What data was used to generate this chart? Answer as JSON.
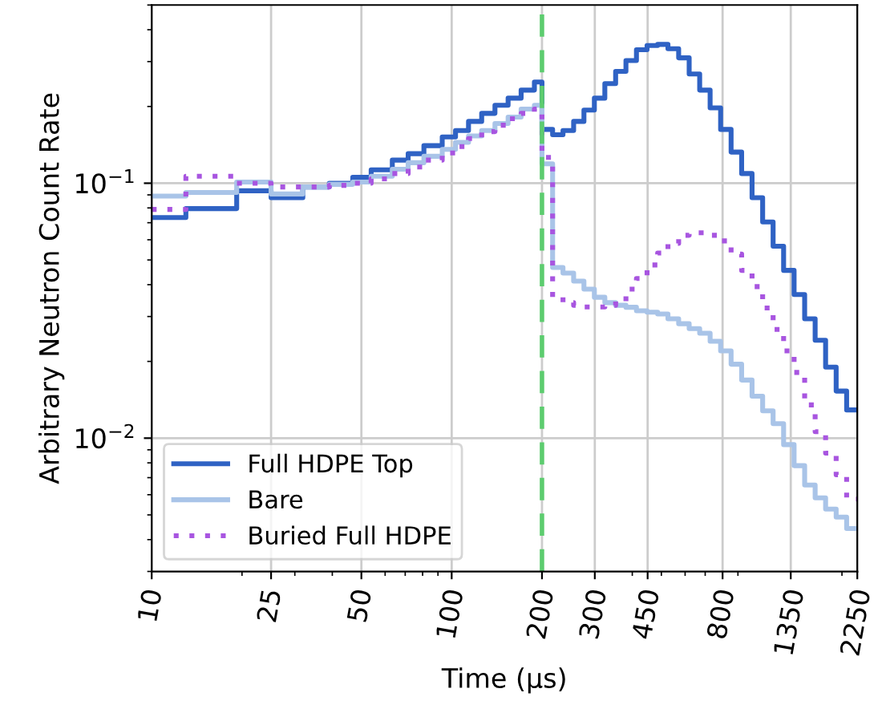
{
  "chart_data": {
    "type": "step",
    "xlabel": "Time (μs)",
    "ylabel": "Arbitrary Neutron Count Rate",
    "x": [
      10,
      13,
      19.2,
      25,
      31.9,
      39.1,
      46.8,
      53.9,
      63.4,
      71.6,
      80.8,
      93,
      103,
      113.8,
      125.9,
      139.4,
      154.2,
      170.4,
      188.7,
      200,
      217,
      235,
      255,
      276,
      299,
      324,
      352,
      381,
      413,
      448,
      486,
      526,
      571,
      619,
      671,
      727,
      788,
      854,
      926,
      1003,
      1088,
      1179,
      1278,
      1385,
      1502,
      1628,
      1764,
      1913,
      2073,
      2250
    ],
    "series": [
      {
        "name": "Full HDPE Top",
        "color": "#2f62c4",
        "line_style": "solid",
        "values": [
          0.0733,
          0.0795,
          0.0934,
          0.0877,
          0.0967,
          0.1,
          0.1055,
          0.1128,
          0.1232,
          0.1306,
          0.1404,
          0.1519,
          0.161,
          0.1747,
          0.1879,
          0.2021,
          0.2156,
          0.2319,
          0.2494,
          0.1625,
          0.1549,
          0.161,
          0.1747,
          0.1935,
          0.2156,
          0.2458,
          0.2745,
          0.3027,
          0.3338,
          0.3467,
          0.3503,
          0.3368,
          0.3103,
          0.2682,
          0.2319,
          0.1975,
          0.1625,
          0.1325,
          0.1091,
          0.0877,
          0.0705,
          0.0566,
          0.0455,
          0.0366,
          0.0294,
          0.0242,
          0.019,
          0.0153,
          0.0129,
          0.0129
        ]
      },
      {
        "name": "Bare",
        "color": "#a9c4e8",
        "line_style": "solid",
        "values": [
          0.089,
          0.092,
          0.101,
          0.0907,
          0.0967,
          0.099,
          0.101,
          0.1065,
          0.1135,
          0.1203,
          0.1275,
          0.1358,
          0.1446,
          0.1533,
          0.161,
          0.1714,
          0.1817,
          0.1954,
          0.2021,
          0.1191,
          0.0467,
          0.0444,
          0.0413,
          0.0384,
          0.0357,
          0.034,
          0.0332,
          0.0326,
          0.0316,
          0.0312,
          0.0307,
          0.0294,
          0.0281,
          0.0269,
          0.0258,
          0.024,
          0.022,
          0.0195,
          0.0169,
          0.0146,
          0.0128,
          0.0114,
          0.00943,
          0.0078,
          0.00655,
          0.00583,
          0.00527,
          0.0049,
          0.00442,
          0.00442
        ]
      },
      {
        "name": "Buried Full HDPE",
        "color": "#a855e0",
        "line_style": "dotted",
        "values": [
          0.0789,
          0.1065,
          0.1,
          0.0967,
          0.0967,
          0.0981,
          0.1,
          0.104,
          0.1091,
          0.1157,
          0.1232,
          0.1314,
          0.1392,
          0.1497,
          0.1594,
          0.1689,
          0.1791,
          0.1879,
          0.1954,
          0.1262,
          0.0357,
          0.034,
          0.0332,
          0.0327,
          0.0327,
          0.0332,
          0.0344,
          0.0384,
          0.0423,
          0.0478,
          0.0532,
          0.0581,
          0.0625,
          0.0639,
          0.0639,
          0.0625,
          0.0594,
          0.0527,
          0.0455,
          0.0393,
          0.0324,
          0.0267,
          0.022,
          0.0181,
          0.0135,
          0.0106,
          0.00873,
          0.00718,
          0.00577,
          0.00577
        ]
      }
    ],
    "ref_lines": [
      {
        "axis": "x",
        "value": 200,
        "color": "#5ccc6e",
        "line_style": "dashed"
      }
    ],
    "log": "xy",
    "xlim": [
      10,
      2250
    ],
    "xticks": [
      10,
      25,
      50,
      100,
      200,
      300,
      450,
      800,
      1350,
      2250
    ],
    "ylim": [
      0.003,
      0.5
    ],
    "yticks": [
      {
        "value": 0.1,
        "label": "10$^{−1}$"
      },
      {
        "value": 0.01,
        "label": "10$^{−2}$"
      }
    ],
    "grid": true,
    "legend": "bottom left"
  }
}
